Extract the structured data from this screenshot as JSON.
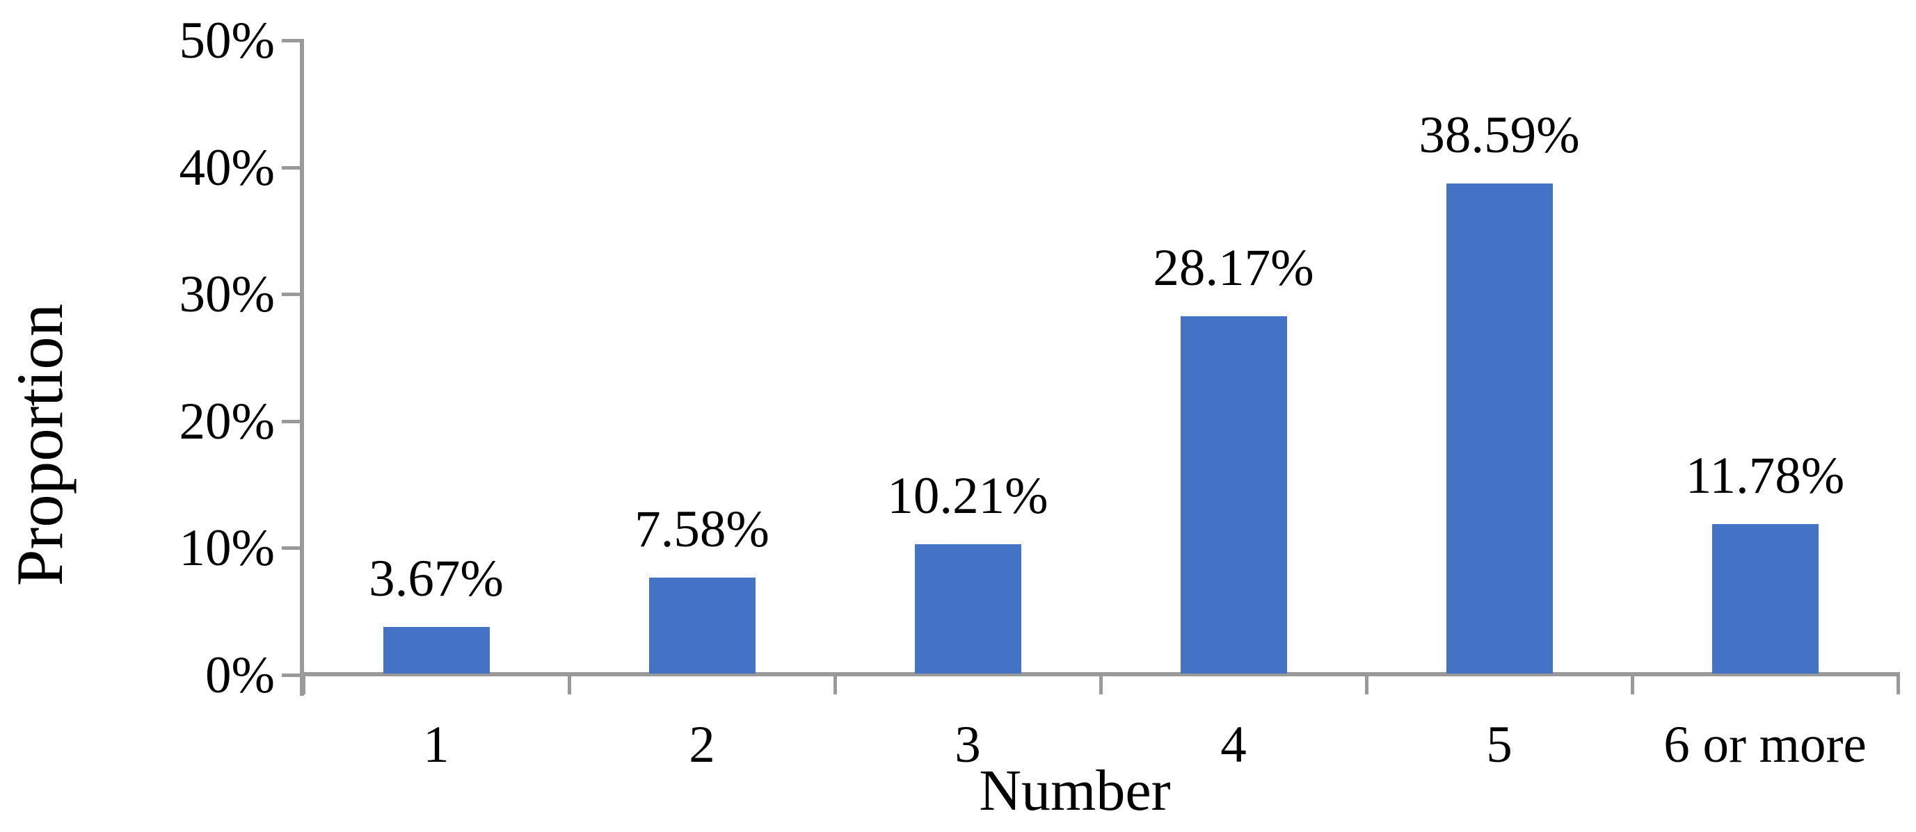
{
  "chart_data": {
    "type": "bar",
    "title": "",
    "xlabel": "Number",
    "ylabel": "Proportion",
    "categories": [
      "1",
      "2",
      "3",
      "4",
      "5",
      "6 or more"
    ],
    "values": [
      3.67,
      7.58,
      10.21,
      28.17,
      38.59,
      11.78
    ],
    "data_labels": [
      "3.67%",
      "7.58%",
      "10.21%",
      "28.17%",
      "38.59%",
      "11.78%"
    ],
    "ylim": [
      0,
      50
    ],
    "ytick_step": 10,
    "ytick_labels": [
      "0%",
      "10%",
      "20%",
      "30%",
      "40%",
      "50%"
    ],
    "grid": "off",
    "legend": "none",
    "colors": {
      "bar_fill": "#4472C4",
      "axis": "#999999",
      "text": "#000000",
      "background": "#FFFFFF"
    }
  }
}
